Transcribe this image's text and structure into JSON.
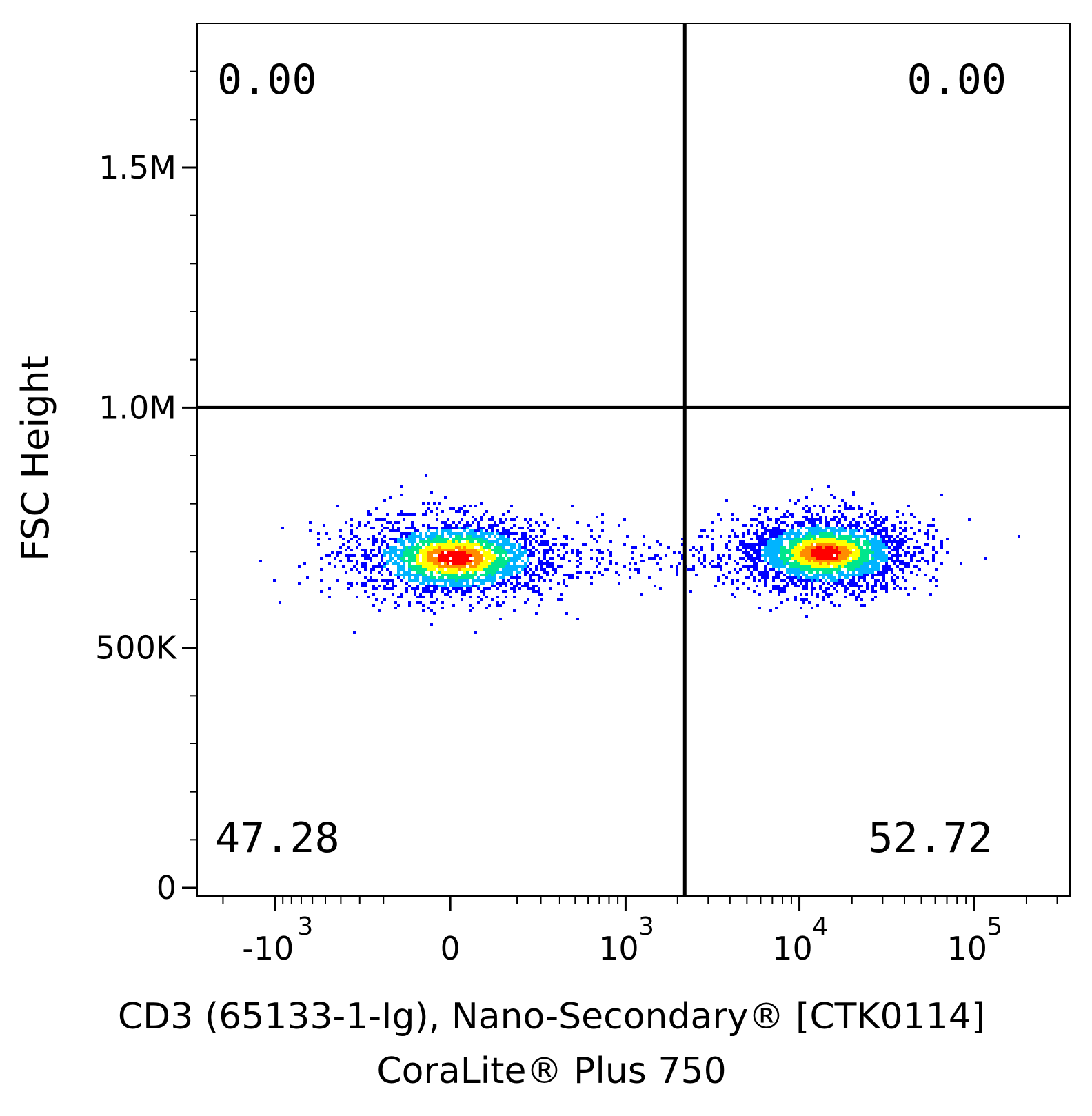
{
  "chart_data": {
    "type": "scatter",
    "subtype": "flow-cytometry-density-plot",
    "xlabel_lines": [
      "CD3 (65133-1-Ig), Nano-Secondary® [CTK0114]",
      "CoraLite® Plus 750"
    ],
    "ylabel": "FSC Height",
    "x_scale": "biexponential",
    "y_scale": "linear",
    "ylim": [
      0,
      1800000
    ],
    "x_ticks": [
      {
        "base": "-10",
        "exp": "3",
        "value": -1000
      },
      {
        "base": "0",
        "exp": "",
        "value": 0
      },
      {
        "base": "10",
        "exp": "3",
        "value": 1000
      },
      {
        "base": "10",
        "exp": "4",
        "value": 10000
      },
      {
        "base": "10",
        "exp": "5",
        "value": 100000
      }
    ],
    "y_ticks": [
      {
        "label": "0",
        "value": 0
      },
      {
        "label": "500K",
        "value": 500000
      },
      {
        "label": "1.0M",
        "value": 1000000
      },
      {
        "label": "1.5M",
        "value": 1500000
      }
    ],
    "quadrant_gate": {
      "x": 2200,
      "y": 1000000
    },
    "quadrants": {
      "upper_left": "0.00",
      "upper_right": "0.00",
      "lower_left": "47.28",
      "lower_right": "52.72"
    },
    "populations": [
      {
        "name": "",
        "x_center": 10,
        "y_center": 690000,
        "percent": 47.28
      },
      {
        "name": "",
        "x_center": 14000,
        "y_center": 700000,
        "percent": 52.72
      }
    ],
    "color_scale": [
      "#0000ff",
      "#00b4ff",
      "#00e68c",
      "#ffff00",
      "#ff8c00",
      "#ff0000"
    ],
    "grid": false,
    "legend": "none"
  }
}
